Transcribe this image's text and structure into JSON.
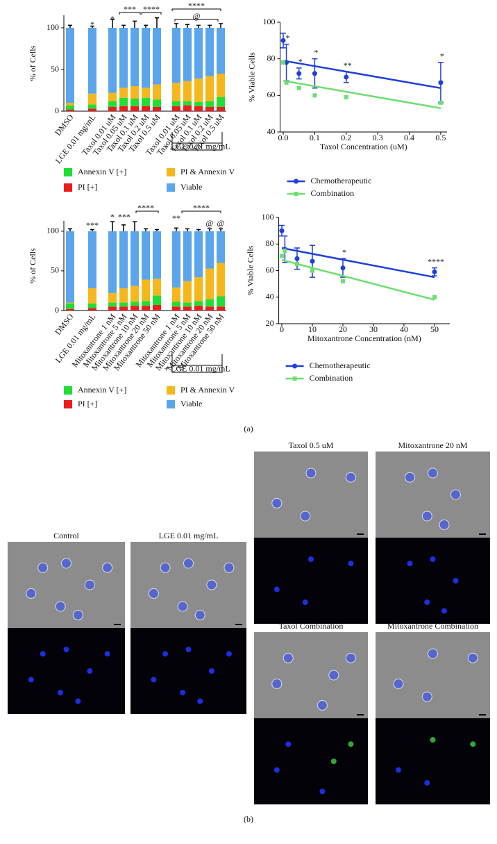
{
  "chart_data": [
    {
      "type": "stacked_bar",
      "y_label": "% of Cells",
      "categories": [
        "DMSO",
        "LGE 0.01 mg/mL",
        "Taxol 0.01 uM",
        "Taxol 0.05 uM",
        "Taxol 0.1 uM",
        "Taxol 0.2 uM",
        "Taxol 0.5 uM",
        "Taxol 0.01 uM",
        "Taxol 0.05 uM",
        "Taxol 0.1 uM",
        "Taxol 0.2 uM",
        "Taxol 0.5 uM"
      ],
      "series": [
        {
          "name": "PI [+]",
          "color": "#ee1c1c",
          "values": [
            2,
            3,
            5,
            6,
            6,
            6,
            5,
            6,
            7,
            6,
            5,
            5
          ]
        },
        {
          "name": "Annexin V [+]",
          "color": "#22dd33",
          "values": [
            5,
            5,
            7,
            10,
            9,
            10,
            9,
            6,
            5,
            5,
            7,
            12
          ]
        },
        {
          "name": "PI & Annexin V",
          "color": "#f5b71c",
          "values": [
            3,
            13,
            10,
            12,
            15,
            12,
            18,
            22,
            24,
            28,
            30,
            28
          ]
        },
        {
          "name": "Viable",
          "color": "#5aa5ec",
          "values": [
            90,
            79,
            78,
            72,
            70,
            72,
            68,
            66,
            64,
            61,
            58,
            55
          ],
          "errors": [
            3,
            2,
            10,
            3,
            8,
            3,
            12,
            5,
            4,
            3,
            3,
            5
          ]
        }
      ],
      "ylim": [
        0,
        115
      ],
      "yticks": [
        0,
        50,
        100
      ],
      "annotations": [
        "*",
        "*",
        "***",
        "****",
        "****",
        "@"
      ],
      "group_label": "+ LGE 0.01 mg/mL"
    },
    {
      "type": "scatter_fit",
      "y_label": "% Viable Cells",
      "x_label": "Taxol Concentration (uM)",
      "x": [
        0,
        0.01,
        0.05,
        0.1,
        0.2,
        0.5
      ],
      "series": [
        {
          "name": "Chemotherapeutic",
          "color": "#1f3fdc",
          "marker": "circle",
          "values": [
            90,
            78,
            72,
            72,
            70,
            67
          ],
          "errors": [
            4,
            10,
            3,
            8,
            3,
            11
          ],
          "fit_x": [
            0,
            0.5
          ],
          "fit_values": [
            79,
            64
          ]
        },
        {
          "name": "Combination",
          "color": "#6ede6e",
          "marker": "square",
          "values": [
            78,
            67,
            64,
            60,
            59,
            56
          ],
          "fit_x": [
            0,
            0.5
          ],
          "fit_values": [
            68,
            53
          ]
        }
      ],
      "xlim": [
        -0.01,
        0.52
      ],
      "xticks": [
        {
          "value": 0,
          "label": "0.0"
        },
        0.1,
        0.2,
        0.3,
        0.4,
        0.5
      ],
      "ylim": [
        40,
        100
      ],
      "yticks": [
        40,
        60,
        80,
        100
      ],
      "annotations": [
        {
          "x": 0.01,
          "label": "*"
        },
        {
          "x": 0.05,
          "label": "*"
        },
        {
          "x": 0.1,
          "label": "*"
        },
        {
          "x": 0.2,
          "label": "**"
        },
        {
          "x": 0.5,
          "label": "*"
        }
      ]
    },
    {
      "type": "stacked_bar",
      "y_label": "% of Cells",
      "categories": [
        "DMSO",
        "LGE 0.01 mg/mL",
        "Mitoxantrone 1 nM",
        "Mitoxantrone 5 nM",
        "Mitoxantrone 10 nM",
        "Mitoxantrone 20 nM",
        "Mitoxantrone 50 nM",
        "Mitoxantrone 1 nM",
        "Mitoxantrone 5 nM",
        "Mitoxantrone 10 nM",
        "Mitoxantrone 20 nM",
        "Mitoxantrone 50 nM"
      ],
      "series": [
        {
          "name": "PI [+]",
          "color": "#ee1c1c",
          "values": [
            2,
            3,
            5,
            5,
            6,
            6,
            7,
            5,
            5,
            6,
            5,
            5
          ]
        },
        {
          "name": "Annexin V [+]",
          "color": "#22dd33",
          "values": [
            7,
            6,
            5,
            5,
            5,
            6,
            12,
            6,
            5,
            6,
            9,
            13
          ]
        },
        {
          "name": "PI & Annexin V",
          "color": "#f5b71c",
          "values": [
            1,
            19,
            12,
            18,
            20,
            27,
            21,
            18,
            27,
            30,
            39,
            42
          ]
        },
        {
          "name": "Viable",
          "color": "#5aa5ec",
          "values": [
            90,
            72,
            78,
            72,
            69,
            61,
            60,
            71,
            63,
            58,
            47,
            40
          ],
          "errors": [
            3,
            2,
            12,
            8,
            12,
            3,
            2,
            4,
            3,
            2,
            3,
            3
          ]
        }
      ],
      "ylim": [
        0,
        113
      ],
      "yticks": [
        0,
        50,
        100
      ],
      "annotations": [
        "***",
        "*",
        "***",
        "****",
        "**",
        "****",
        "@",
        "@"
      ],
      "group_label": "+ LGE 0.01 mg/mL"
    },
    {
      "type": "scatter_fit",
      "y_label": "% Viable Cells",
      "x_label": "Mitoxantrone Concentration (nM)",
      "x": [
        0,
        1,
        5,
        10,
        20,
        50
      ],
      "series": [
        {
          "name": "Chemotherapeutic",
          "color": "#1f3fdc",
          "marker": "circle",
          "values": [
            90,
            76,
            69,
            67,
            62,
            59
          ],
          "errors": [
            4,
            10,
            8,
            12,
            7,
            3
          ],
          "fit_x": [
            0,
            50
          ],
          "fit_values": [
            77,
            55
          ]
        },
        {
          "name": "Combination",
          "color": "#6ede6e",
          "marker": "square",
          "values": [
            71,
            75,
            65,
            60,
            52,
            40
          ],
          "fit_x": [
            0,
            50
          ],
          "fit_values": [
            68,
            38
          ]
        }
      ],
      "xlim": [
        -1,
        55
      ],
      "xticks": [
        0,
        10,
        20,
        30,
        40,
        50
      ],
      "ylim": [
        20,
        100
      ],
      "yticks": [
        20,
        40,
        60,
        80,
        100
      ],
      "annotations": [
        {
          "x": 20,
          "label": "*"
        },
        {
          "x": 50,
          "label": "****"
        }
      ]
    }
  ],
  "panel_labels": [
    "(a)",
    "(b)"
  ],
  "images": [
    {
      "label": "Control"
    },
    {
      "label": "LGE 0.01 mg/mL"
    },
    {
      "label": "Taxol 0.5 uM"
    },
    {
      "label": "Mitoxantrone 20 nM"
    },
    {
      "label": "Taxol Combination"
    },
    {
      "label": "Mitoxantrone Combination"
    }
  ]
}
